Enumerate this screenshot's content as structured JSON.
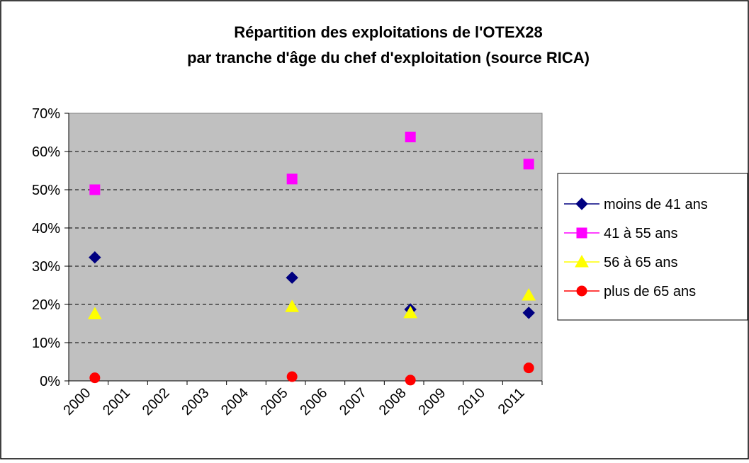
{
  "chart_data": {
    "type": "scatter",
    "title": [
      "Répartition des exploitations de l'OTEX28",
      "par tranche d'âge du chef d'exploitation (source RICA)"
    ],
    "categories": [
      "2000",
      "2001",
      "2002",
      "2003",
      "2004",
      "2005",
      "2006",
      "2007",
      "2008",
      "2009",
      "2010",
      "2011"
    ],
    "series": [
      {
        "name": "moins de 41 ans",
        "color": "#000080",
        "marker": "diamond",
        "values": [
          32.3,
          null,
          null,
          null,
          null,
          27.0,
          null,
          null,
          18.7,
          null,
          null,
          17.8
        ]
      },
      {
        "name": "41 à 55 ans",
        "color": "#ff00ff",
        "marker": "square",
        "values": [
          50.0,
          null,
          null,
          null,
          null,
          52.8,
          null,
          null,
          63.8,
          null,
          null,
          56.7
        ]
      },
      {
        "name": "56 à 65 ans",
        "color": "#ffff00",
        "marker": "triangle",
        "values": [
          17.5,
          null,
          null,
          null,
          null,
          19.4,
          null,
          null,
          17.8,
          null,
          null,
          22.4
        ]
      },
      {
        "name": "plus de 65 ans",
        "color": "#ff0000",
        "marker": "circle",
        "values": [
          0.8,
          null,
          null,
          null,
          null,
          1.1,
          null,
          null,
          0.2,
          null,
          null,
          3.4
        ]
      }
    ],
    "ylim": [
      0,
      70
    ],
    "yticks": [
      {
        "value": 0,
        "label": "0%"
      },
      {
        "value": 10,
        "label": "10%"
      },
      {
        "value": 20,
        "label": "20%"
      },
      {
        "value": 30,
        "label": "30%"
      },
      {
        "value": 40,
        "label": "40%"
      },
      {
        "value": 50,
        "label": "50%"
      },
      {
        "value": 60,
        "label": "60%"
      },
      {
        "value": 70,
        "label": "70%"
      }
    ],
    "grid": true,
    "legend": "right",
    "plot_background": "#c0c0c0"
  }
}
